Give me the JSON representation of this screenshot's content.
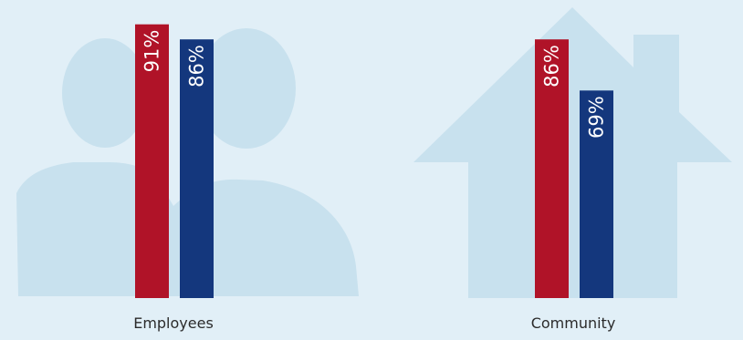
{
  "chart_data": {
    "type": "bar",
    "categories": [
      "Employees",
      "Community"
    ],
    "series": [
      {
        "values": [
          91,
          86
        ],
        "labels": [
          "91%",
          "86%"
        ],
        "color": "#b01328"
      },
      {
        "values": [
          86,
          69
        ],
        "labels": [
          "86%",
          "69%"
        ],
        "color": "#14377d"
      }
    ],
    "ylim": [
      0,
      100
    ],
    "grid": false,
    "legend": "none",
    "background_icons": [
      "people-icon",
      "house-icon"
    ]
  },
  "colors": {
    "background": "#e1eff7",
    "silhouette": "#c8e1ee",
    "label_text": "#ffffff",
    "category_text": "#2b2b2b"
  }
}
